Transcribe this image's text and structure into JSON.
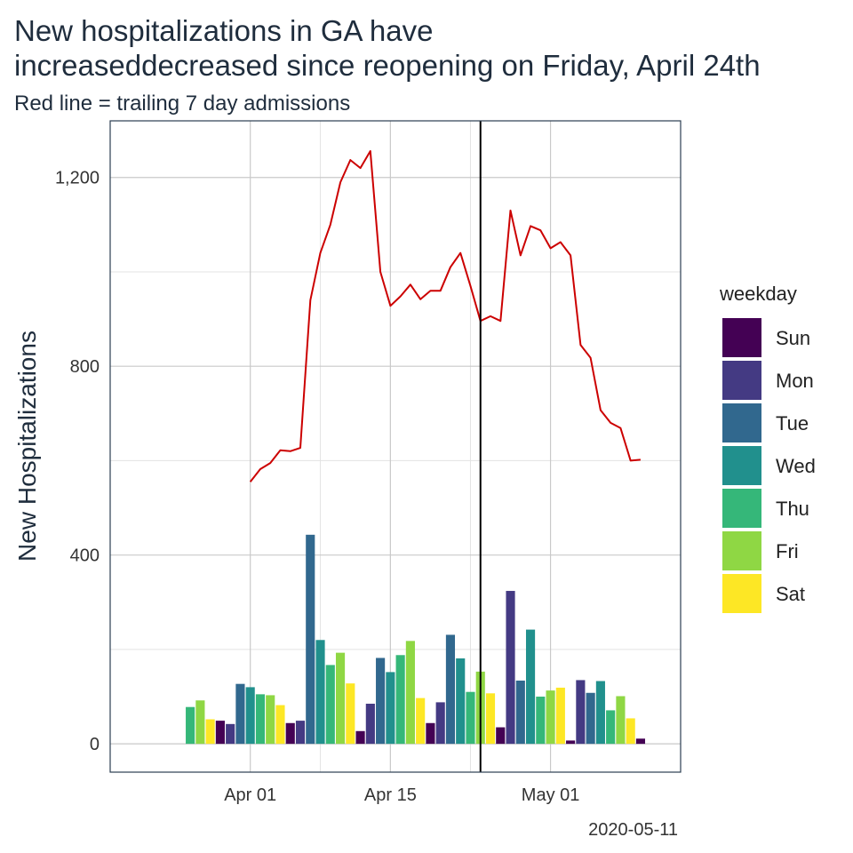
{
  "chart_data": {
    "type": "bar",
    "title_line1": "New hospitalizations in GA have",
    "title_line2": "increaseddecreased since reopening on Friday, April 24th",
    "subtitle": "Red line = trailing 7 day admissions",
    "ylabel": "New Hospitalizations",
    "caption": "2020-05-11",
    "ylim": [
      -60,
      1320
    ],
    "grid": true,
    "y_ticks": [
      0,
      400,
      800,
      1200
    ],
    "y_tick_labels": [
      "0",
      "400",
      "800",
      "1,200"
    ],
    "x_ticks": [
      "2020-04-01",
      "2020-04-15",
      "2020-05-01"
    ],
    "x_tick_labels": [
      "Apr 01",
      "Apr 15",
      "May 01"
    ],
    "xlim": [
      "2020-03-18",
      "2020-05-14"
    ],
    "reopening_date": "2020-04-24",
    "legend_title": "weekday",
    "legend_position": "right",
    "weekdays": [
      "Sun",
      "Mon",
      "Tue",
      "Wed",
      "Thu",
      "Fri",
      "Sat"
    ],
    "weekday_colors": [
      "#440154",
      "#443a83",
      "#31688e",
      "#21908d",
      "#35b779",
      "#8fd744",
      "#fde725"
    ],
    "bars": [
      {
        "date": "2020-03-26",
        "weekday": "Thu",
        "value": 78
      },
      {
        "date": "2020-03-27",
        "weekday": "Fri",
        "value": 92
      },
      {
        "date": "2020-03-28",
        "weekday": "Sat",
        "value": 52
      },
      {
        "date": "2020-03-29",
        "weekday": "Sun",
        "value": 49
      },
      {
        "date": "2020-03-30",
        "weekday": "Mon",
        "value": 42
      },
      {
        "date": "2020-03-31",
        "weekday": "Tue",
        "value": 127
      },
      {
        "date": "2020-04-01",
        "weekday": "Wed",
        "value": 120
      },
      {
        "date": "2020-04-02",
        "weekday": "Thu",
        "value": 105
      },
      {
        "date": "2020-04-03",
        "weekday": "Fri",
        "value": 103
      },
      {
        "date": "2020-04-04",
        "weekday": "Sat",
        "value": 82
      },
      {
        "date": "2020-04-05",
        "weekday": "Sun",
        "value": 44
      },
      {
        "date": "2020-04-06",
        "weekday": "Mon",
        "value": 49
      },
      {
        "date": "2020-04-07",
        "weekday": "Tue",
        "value": 443
      },
      {
        "date": "2020-04-08",
        "weekday": "Wed",
        "value": 220
      },
      {
        "date": "2020-04-09",
        "weekday": "Thu",
        "value": 167
      },
      {
        "date": "2020-04-10",
        "weekday": "Fri",
        "value": 193
      },
      {
        "date": "2020-04-11",
        "weekday": "Sat",
        "value": 128
      },
      {
        "date": "2020-04-12",
        "weekday": "Sun",
        "value": 27
      },
      {
        "date": "2020-04-13",
        "weekday": "Mon",
        "value": 85
      },
      {
        "date": "2020-04-14",
        "weekday": "Tue",
        "value": 182
      },
      {
        "date": "2020-04-15",
        "weekday": "Wed",
        "value": 152
      },
      {
        "date": "2020-04-16",
        "weekday": "Thu",
        "value": 188
      },
      {
        "date": "2020-04-17",
        "weekday": "Fri",
        "value": 218
      },
      {
        "date": "2020-04-18",
        "weekday": "Sat",
        "value": 97
      },
      {
        "date": "2020-04-19",
        "weekday": "Sun",
        "value": 44
      },
      {
        "date": "2020-04-20",
        "weekday": "Mon",
        "value": 88
      },
      {
        "date": "2020-04-21",
        "weekday": "Tue",
        "value": 231
      },
      {
        "date": "2020-04-22",
        "weekday": "Wed",
        "value": 181
      },
      {
        "date": "2020-04-23",
        "weekday": "Thu",
        "value": 110
      },
      {
        "date": "2020-04-24",
        "weekday": "Fri",
        "value": 153
      },
      {
        "date": "2020-04-25",
        "weekday": "Sat",
        "value": 107
      },
      {
        "date": "2020-04-26",
        "weekday": "Sun",
        "value": 35
      },
      {
        "date": "2020-04-27",
        "weekday": "Mon",
        "value": 324
      },
      {
        "date": "2020-04-28",
        "weekday": "Tue",
        "value": 134
      },
      {
        "date": "2020-04-29",
        "weekday": "Wed",
        "value": 242
      },
      {
        "date": "2020-04-30",
        "weekday": "Thu",
        "value": 100
      },
      {
        "date": "2020-05-01",
        "weekday": "Fri",
        "value": 113
      },
      {
        "date": "2020-05-02",
        "weekday": "Sat",
        "value": 119
      },
      {
        "date": "2020-05-03",
        "weekday": "Sun",
        "value": 7
      },
      {
        "date": "2020-05-04",
        "weekday": "Mon",
        "value": 135
      },
      {
        "date": "2020-05-05",
        "weekday": "Tue",
        "value": 108
      },
      {
        "date": "2020-05-06",
        "weekday": "Wed",
        "value": 133
      },
      {
        "date": "2020-05-07",
        "weekday": "Thu",
        "value": 71
      },
      {
        "date": "2020-05-08",
        "weekday": "Fri",
        "value": 101
      },
      {
        "date": "2020-05-09",
        "weekday": "Sat",
        "value": 54
      },
      {
        "date": "2020-05-10",
        "weekday": "Sun",
        "value": 11
      }
    ],
    "trailing_7day": {
      "color": "#cc0000",
      "points": [
        {
          "date": "2020-04-01",
          "value": 555
        },
        {
          "date": "2020-04-02",
          "value": 582
        },
        {
          "date": "2020-04-03",
          "value": 595
        },
        {
          "date": "2020-04-04",
          "value": 622
        },
        {
          "date": "2020-04-05",
          "value": 620
        },
        {
          "date": "2020-04-06",
          "value": 627
        },
        {
          "date": "2020-04-07",
          "value": 940
        },
        {
          "date": "2020-04-08",
          "value": 1040
        },
        {
          "date": "2020-04-09",
          "value": 1100
        },
        {
          "date": "2020-04-10",
          "value": 1190
        },
        {
          "date": "2020-04-11",
          "value": 1237
        },
        {
          "date": "2020-04-12",
          "value": 1220
        },
        {
          "date": "2020-04-13",
          "value": 1256
        },
        {
          "date": "2020-04-14",
          "value": 1000
        },
        {
          "date": "2020-04-15",
          "value": 928
        },
        {
          "date": "2020-04-16",
          "value": 948
        },
        {
          "date": "2020-04-17",
          "value": 973
        },
        {
          "date": "2020-04-18",
          "value": 942
        },
        {
          "date": "2020-04-19",
          "value": 960
        },
        {
          "date": "2020-04-20",
          "value": 960
        },
        {
          "date": "2020-04-21",
          "value": 1010
        },
        {
          "date": "2020-04-22",
          "value": 1040
        },
        {
          "date": "2020-04-23",
          "value": 970
        },
        {
          "date": "2020-04-24",
          "value": 896
        },
        {
          "date": "2020-04-25",
          "value": 906
        },
        {
          "date": "2020-04-26",
          "value": 896
        },
        {
          "date": "2020-04-27",
          "value": 1130
        },
        {
          "date": "2020-04-28",
          "value": 1035
        },
        {
          "date": "2020-04-29",
          "value": 1097
        },
        {
          "date": "2020-04-30",
          "value": 1088
        },
        {
          "date": "2020-05-01",
          "value": 1050
        },
        {
          "date": "2020-05-02",
          "value": 1063
        },
        {
          "date": "2020-05-03",
          "value": 1035
        },
        {
          "date": "2020-05-04",
          "value": 845
        },
        {
          "date": "2020-05-05",
          "value": 818
        },
        {
          "date": "2020-05-06",
          "value": 707
        },
        {
          "date": "2020-05-07",
          "value": 680
        },
        {
          "date": "2020-05-08",
          "value": 669
        },
        {
          "date": "2020-05-09",
          "value": 600
        },
        {
          "date": "2020-05-10",
          "value": 602
        }
      ]
    }
  }
}
